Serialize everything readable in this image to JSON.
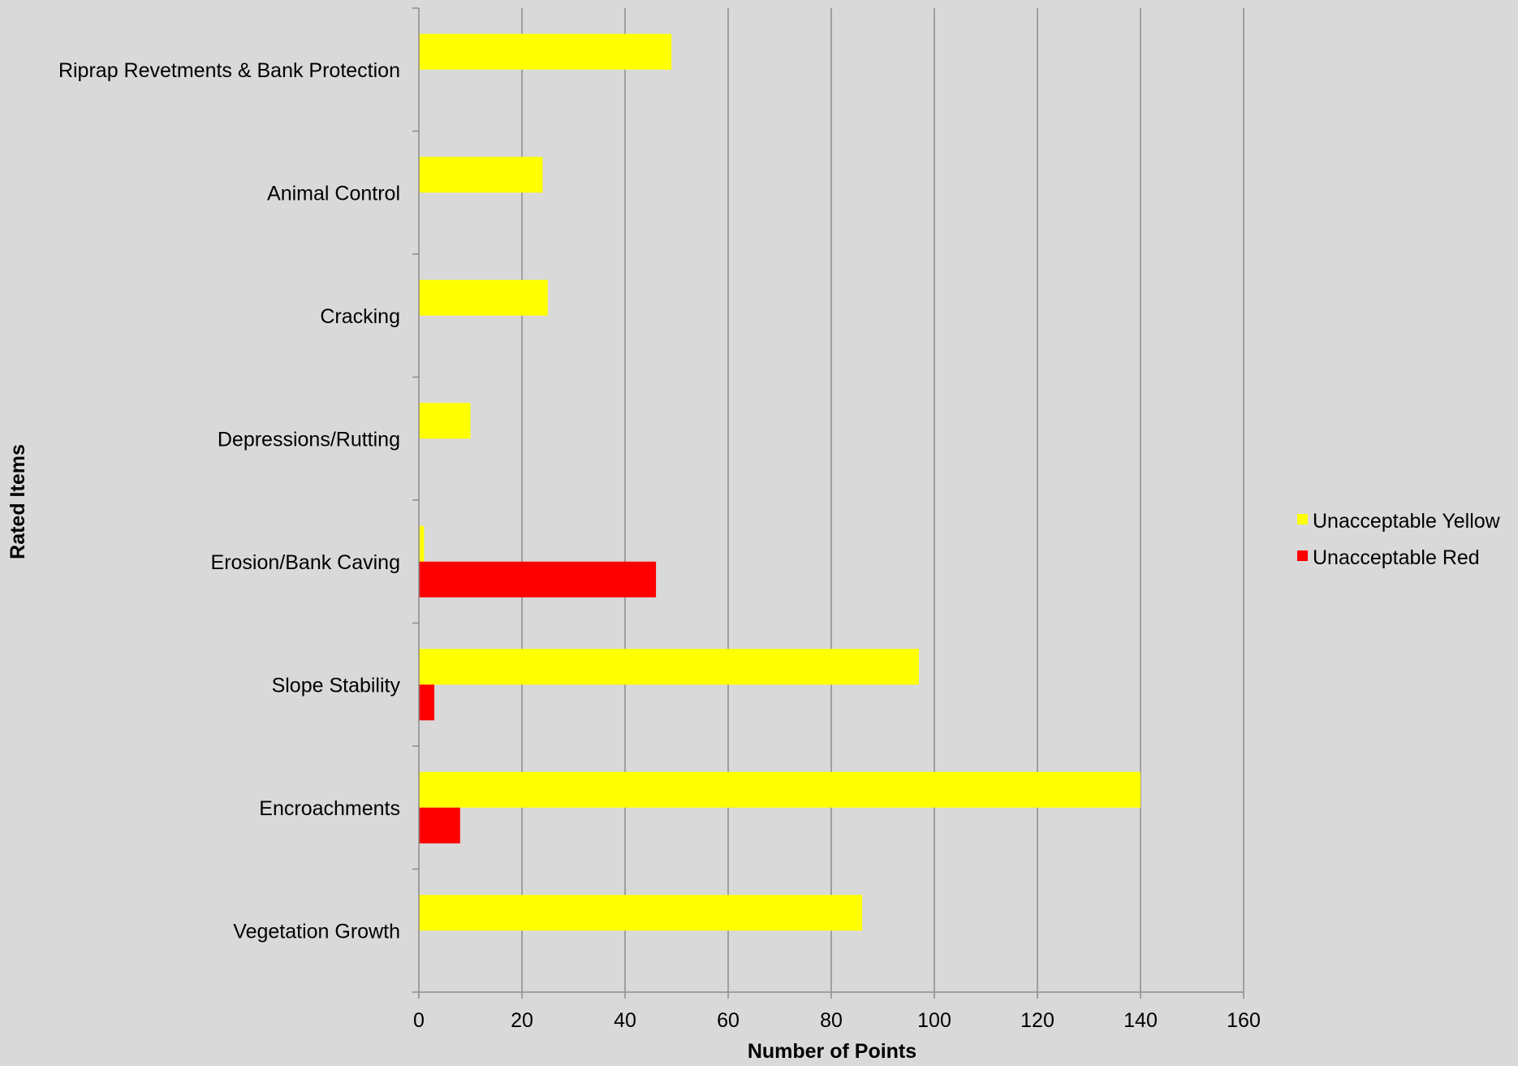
{
  "chart_data": {
    "type": "bar",
    "orientation": "horizontal",
    "xlabel": "Number of Points",
    "ylabel": "Rated Items",
    "xlim": [
      0,
      160
    ],
    "xticks": [
      0,
      20,
      40,
      60,
      80,
      100,
      120,
      140,
      160
    ],
    "grid": "vertical major gridlines",
    "legend_position": "right",
    "background_color": "#d9d9d9",
    "gridline_color": "#8c8c8c",
    "categories": [
      "Riprap Revetments & Bank Protection",
      "Animal Control",
      "Cracking",
      "Depressions/Rutting",
      "Erosion/Bank Caving",
      "Slope Stability",
      "Encroachments",
      "Vegetation Growth"
    ],
    "series": [
      {
        "name": "Unacceptable Yellow",
        "color": "#ffff00",
        "values": [
          49,
          24,
          25,
          10,
          1,
          97,
          140,
          86
        ]
      },
      {
        "name": "Unacceptable Red",
        "color": "#ff0000",
        "values": [
          0,
          0,
          0,
          0,
          46,
          3,
          8,
          0
        ]
      }
    ]
  }
}
